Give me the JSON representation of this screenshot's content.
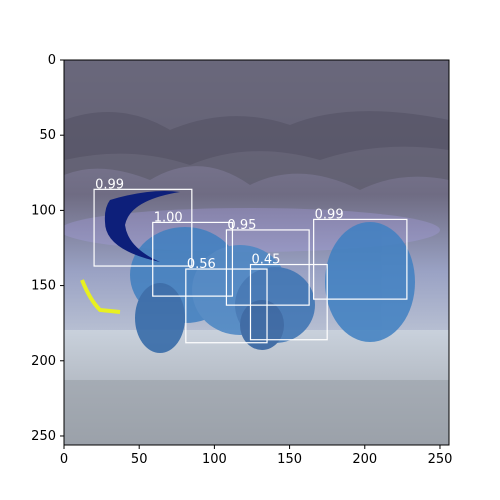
{
  "chart_data": {
    "type": "image_detections",
    "xlim": [
      0,
      256
    ],
    "ylim": [
      256,
      0
    ],
    "xticks": [
      0,
      50,
      100,
      150,
      200,
      250
    ],
    "yticks": [
      0,
      50,
      100,
      150,
      200,
      250
    ],
    "xtick_labels": [
      "0",
      "50",
      "100",
      "150",
      "200",
      "250"
    ],
    "ytick_labels": [
      "0",
      "50",
      "100",
      "150",
      "200",
      "250"
    ],
    "box_color": "#ffffff",
    "boxes": [
      {
        "score": "0.99",
        "x0": 20,
        "y0": 86,
        "x1": 85,
        "y1": 137
      },
      {
        "score": "1.00",
        "x0": 59,
        "y0": 108,
        "x1": 112,
        "y1": 157
      },
      {
        "score": "0.95",
        "x0": 108,
        "y0": 113,
        "x1": 163,
        "y1": 163
      },
      {
        "score": "0.99",
        "x0": 166,
        "y0": 106,
        "x1": 228,
        "y1": 159
      },
      {
        "score": "0.56",
        "x0": 81,
        "y0": 139,
        "x1": 135,
        "y1": 188
      },
      {
        "score": "0.45",
        "x0": 124,
        "y0": 136,
        "x1": 175,
        "y1": 186
      }
    ]
  }
}
